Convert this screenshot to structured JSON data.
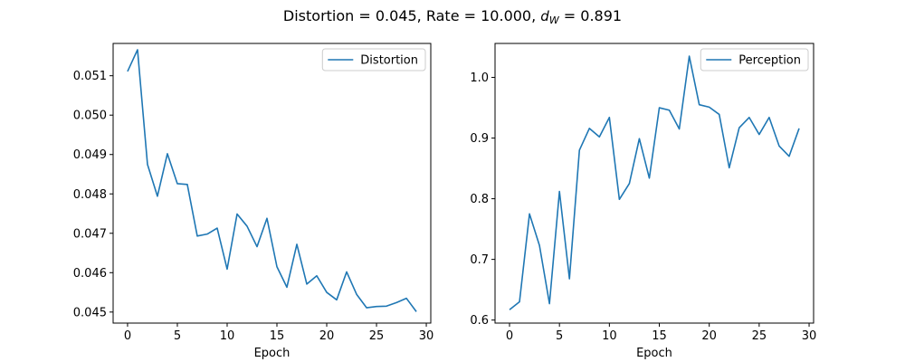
{
  "figure": {
    "title_prefix": "Distortion = 0.045, Rate = 10.000, ",
    "title_d": "d",
    "title_sub": "W",
    "title_suffix": " = 0.891"
  },
  "chart_data": [
    {
      "type": "line",
      "title": "",
      "xlabel": "Epoch",
      "ylabel": "",
      "xlim": [
        -1.45,
        30.45
      ],
      "ylim": [
        0.04472,
        0.05182
      ],
      "xticks": [
        0,
        5,
        10,
        15,
        20,
        25,
        30
      ],
      "yticks": [
        0.045,
        0.046,
        0.047,
        0.048,
        0.049,
        0.05,
        0.051
      ],
      "ytick_labels": [
        "0.045",
        "0.046",
        "0.047",
        "0.048",
        "0.049",
        "0.050",
        "0.051"
      ],
      "legend_position": "top-right",
      "color": "#1f77b4",
      "series": [
        {
          "name": "Distortion",
          "x": [
            0,
            1,
            2,
            3,
            4,
            5,
            6,
            7,
            8,
            9,
            10,
            11,
            12,
            13,
            14,
            15,
            16,
            17,
            18,
            19,
            20,
            21,
            22,
            23,
            24,
            25,
            26,
            27,
            28,
            29
          ],
          "values": [
            0.05111,
            0.05166,
            0.04875,
            0.04794,
            0.04902,
            0.04826,
            0.04824,
            0.04693,
            0.04698,
            0.04713,
            0.04609,
            0.04749,
            0.04718,
            0.04666,
            0.04738,
            0.04615,
            0.04563,
            0.04672,
            0.04571,
            0.04592,
            0.0455,
            0.04531,
            0.04602,
            0.04545,
            0.04511,
            0.04514,
            0.04515,
            0.04524,
            0.04535,
            0.04501
          ]
        }
      ]
    },
    {
      "type": "line",
      "title": "",
      "xlabel": "Epoch",
      "ylabel": "",
      "xlim": [
        -1.45,
        30.45
      ],
      "ylim": [
        0.595,
        1.056
      ],
      "xticks": [
        0,
        5,
        10,
        15,
        20,
        25,
        30
      ],
      "yticks": [
        0.6,
        0.7,
        0.8,
        0.9,
        1.0
      ],
      "ytick_labels": [
        "0.6",
        "0.7",
        "0.8",
        "0.9",
        "1.0"
      ],
      "legend_position": "top-right",
      "color": "#1f77b4",
      "series": [
        {
          "name": "Perception",
          "x": [
            0,
            1,
            2,
            3,
            4,
            5,
            6,
            7,
            8,
            9,
            10,
            11,
            12,
            13,
            14,
            15,
            16,
            17,
            18,
            19,
            20,
            21,
            22,
            23,
            24,
            25,
            26,
            27,
            28,
            29
          ],
          "values": [
            0.617,
            0.63,
            0.775,
            0.723,
            0.627,
            0.812,
            0.668,
            0.88,
            0.916,
            0.902,
            0.934,
            0.799,
            0.825,
            0.899,
            0.834,
            0.95,
            0.946,
            0.915,
            1.035,
            0.955,
            0.951,
            0.939,
            0.851,
            0.917,
            0.934,
            0.906,
            0.934,
            0.887,
            0.87,
            0.916
          ]
        }
      ]
    }
  ]
}
